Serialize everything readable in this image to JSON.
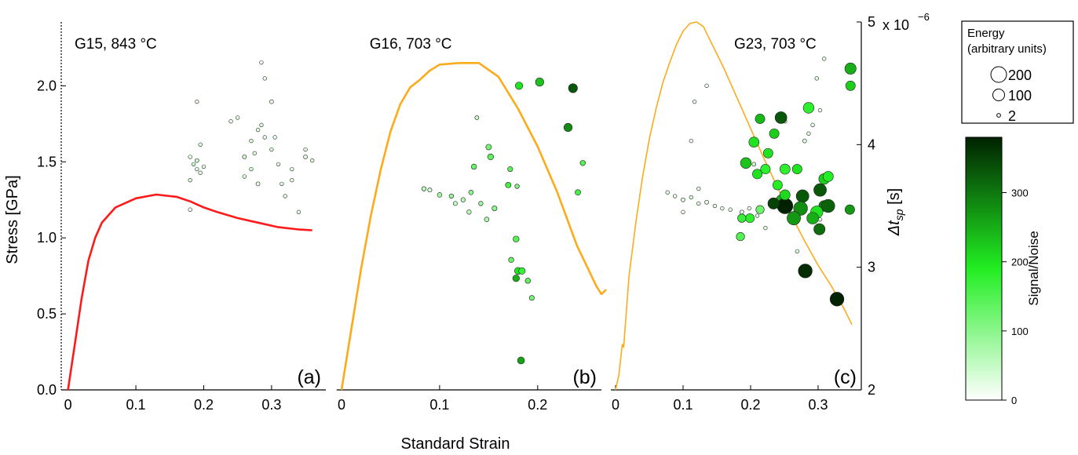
{
  "chart_data": [
    {
      "type": "line",
      "annotation": "G15, 843 °C",
      "label": "(a)",
      "color": "#ff1a1a",
      "xlim": [
        -0.01,
        0.38
      ],
      "xticks": [
        0,
        0.1,
        0.2,
        0.3
      ],
      "ylim": [
        0,
        2.42
      ],
      "yticks": [
        {
          "value": 0,
          "label": "0.0"
        },
        0.5,
        {
          "value": 1,
          "label": "1.0"
        },
        1.5,
        {
          "value": 2,
          "label": "2.0"
        }
      ],
      "y2lim": [
        2e-06,
        5e-06
      ],
      "x": [
        0,
        0.01,
        0.02,
        0.03,
        0.04,
        0.05,
        0.07,
        0.1,
        0.13,
        0.16,
        0.18,
        0.2,
        0.22,
        0.25,
        0.28,
        0.31,
        0.34,
        0.36
      ],
      "values": [
        0,
        0.3,
        0.6,
        0.85,
        1.0,
        1.1,
        1.2,
        1.26,
        1.285,
        1.27,
        1.24,
        1.2,
        1.17,
        1.13,
        1.1,
        1.07,
        1.055,
        1.05
      ],
      "points": {
        "x": [
          0.18,
          0.185,
          0.19,
          0.19,
          0.195,
          0.18,
          0.2,
          0.19,
          0.195,
          0.18,
          0.25,
          0.26,
          0.27,
          0.28,
          0.285,
          0.29,
          0.3,
          0.3,
          0.31,
          0.33,
          0.33,
          0.35,
          0.35,
          0.34,
          0.26,
          0.27,
          0.28,
          0.29,
          0.32,
          0.36,
          0.285,
          0.275,
          0.305,
          0.315,
          0.24
        ],
        "y": [
          3.9e-06,
          3.84e-06,
          3.8e-06,
          3.87e-06,
          3.77e-06,
          3.71e-06,
          3.82e-06,
          4.35e-06,
          4e-06,
          3.47e-06,
          4.22e-06,
          3.9e-06,
          4.03e-06,
          4.12e-06,
          4.67e-06,
          4.54e-06,
          3.96e-06,
          4.35e-06,
          3.84e-06,
          3.8e-06,
          3.71e-06,
          3.9e-06,
          3.96e-06,
          3.45e-06,
          3.74e-06,
          3.8e-06,
          3.68e-06,
          4.06e-06,
          3.58e-06,
          3.87e-06,
          4.16e-06,
          3.93e-06,
          4.06e-06,
          3.68e-06,
          4.19e-06
        ],
        "energy": [
          2,
          2,
          2,
          3,
          2,
          2,
          2,
          2,
          2,
          2,
          2,
          3,
          2,
          2,
          2,
          2,
          2,
          3,
          2,
          2,
          2,
          3,
          2,
          2,
          2,
          2,
          3,
          2,
          2,
          2,
          2,
          2,
          2,
          2,
          2
        ],
        "snr": [
          20,
          40,
          30,
          50,
          25,
          30,
          20,
          15,
          30,
          10,
          20,
          40,
          30,
          25,
          10,
          15,
          35,
          20,
          25,
          30,
          20,
          30,
          25,
          15,
          30,
          40,
          20,
          25,
          20,
          30,
          35,
          25,
          20,
          30,
          15
        ]
      }
    },
    {
      "type": "line",
      "annotation": "G16, 703 °C",
      "label": "(b)",
      "color": "#fbab1b",
      "xlim": [
        -0.005,
        0.265
      ],
      "xticks": [
        0,
        0.1,
        0.2
      ],
      "ylim": [
        0,
        2.42
      ],
      "y2lim": [
        2e-06,
        5e-06
      ],
      "x": [
        0,
        0.01,
        0.02,
        0.03,
        0.04,
        0.05,
        0.06,
        0.07,
        0.08,
        0.09,
        0.1,
        0.12,
        0.14,
        0.16,
        0.18,
        0.2,
        0.22,
        0.24,
        0.26,
        0.265,
        0.27
      ],
      "values": [
        0,
        0.4,
        0.8,
        1.15,
        1.45,
        1.7,
        1.88,
        1.99,
        2.04,
        2.1,
        2.14,
        2.15,
        2.15,
        2.06,
        1.85,
        1.6,
        1.3,
        0.95,
        0.68,
        0.63,
        0.66
      ],
      "points": {
        "x": [
          0.181,
          0.202,
          0.236,
          0.231,
          0.246,
          0.241,
          0.138,
          0.15,
          0.152,
          0.135,
          0.172,
          0.17,
          0.179,
          0.084,
          0.09,
          0.1,
          0.112,
          0.124,
          0.132,
          0.142,
          0.156,
          0.116,
          0.13,
          0.148,
          0.178,
          0.18,
          0.184,
          0.19,
          0.173,
          0.194,
          0.183,
          0.178
        ],
        "y": [
          4.48e-06,
          4.51e-06,
          4.46e-06,
          4.14e-06,
          3.85e-06,
          3.61e-06,
          4.22e-06,
          3.98e-06,
          3.9e-06,
          3.82e-06,
          3.8e-06,
          3.67e-06,
          3.66e-06,
          3.64e-06,
          3.63e-06,
          3.59e-06,
          3.58e-06,
          3.55e-06,
          3.61e-06,
          3.52e-06,
          3.48e-06,
          3.52e-06,
          3.45e-06,
          3.39e-06,
          3.23e-06,
          2.97e-06,
          2.97e-06,
          2.89e-06,
          3.06e-06,
          2.75e-06,
          2.24e-06,
          2.91e-06
        ],
        "energy": [
          30,
          40,
          50,
          40,
          10,
          12,
          3,
          12,
          15,
          10,
          8,
          12,
          5,
          5,
          4,
          6,
          5,
          5,
          6,
          5,
          8,
          4,
          5,
          6,
          15,
          25,
          20,
          10,
          10,
          8,
          25,
          22
        ],
        "snr": [
          200,
          230,
          330,
          280,
          150,
          160,
          50,
          120,
          140,
          130,
          140,
          160,
          110,
          60,
          40,
          80,
          90,
          60,
          100,
          80,
          100,
          50,
          60,
          70,
          150,
          200,
          170,
          140,
          130,
          120,
          260,
          250
        ]
      }
    },
    {
      "type": "line",
      "annotation": "G23, 703 °C",
      "label": "(c)",
      "color": "#fbab1b",
      "xlim": [
        -0.007,
        0.364
      ],
      "xticks": [
        0,
        0.1,
        0.2,
        0.3
      ],
      "ylim": [
        0,
        2.42
      ],
      "y2lim": [
        2e-06,
        5e-06
      ],
      "y2ticks": [
        {
          "value": 2e-06,
          "label": "2"
        },
        {
          "value": 3e-06,
          "label": "3"
        },
        {
          "value": 4e-06,
          "label": "4"
        },
        {
          "value": 5e-06,
          "label": "5"
        }
      ],
      "y2_multiplier": "x 10",
      "y2_exponent": "−6",
      "y2label": {
        "symbol": "Δt",
        "subscript": "sp",
        "unit": " [s]"
      },
      "x": [
        0,
        0.005,
        0.01,
        0.012,
        0.02,
        0.03,
        0.04,
        0.05,
        0.06,
        0.07,
        0.08,
        0.09,
        0.1,
        0.11,
        0.12,
        0.13,
        0.14,
        0.16,
        0.18,
        0.2,
        0.22,
        0.24,
        0.26,
        0.28,
        0.3,
        0.32,
        0.34,
        0.35
      ],
      "values": [
        0,
        0.1,
        0.3,
        0.28,
        0.75,
        1.1,
        1.4,
        1.65,
        1.85,
        2.02,
        2.15,
        2.27,
        2.36,
        2.41,
        2.42,
        2.39,
        2.3,
        2.12,
        1.92,
        1.72,
        1.52,
        1.33,
        1.15,
        0.98,
        0.82,
        0.68,
        0.52,
        0.43
      ],
      "points": {
        "x": [
          0.077,
          0.088,
          0.1,
          0.112,
          0.123,
          0.135,
          0.147,
          0.158,
          0.17,
          0.187,
          0.198,
          0.21,
          0.1,
          0.123,
          0.117,
          0.112,
          0.205,
          0.222,
          0.251,
          0.286,
          0.28,
          0.292,
          0.303,
          0.309,
          0.298,
          0.269,
          0.303,
          0.135,
          0.348,
          0.348,
          0.286,
          0.214,
          0.245,
          0.235,
          0.205,
          0.226,
          0.193,
          0.222,
          0.21,
          0.251,
          0.269,
          0.24,
          0.309,
          0.315,
          0.303,
          0.309,
          0.247,
          0.277,
          0.251,
          0.274,
          0.298,
          0.315,
          0.264,
          0.292,
          0.347,
          0.302,
          0.185,
          0.214,
          0.199,
          0.187,
          0.281,
          0.328,
          0.234,
          0.251
        ],
        "y": [
          3.61e-06,
          3.58e-06,
          3.55e-06,
          3.57e-06,
          3.52e-06,
          3.53e-06,
          3.5e-06,
          3.48e-06,
          3.47e-06,
          3.45e-06,
          3.48e-06,
          3.42e-06,
          3.45e-06,
          3.64e-06,
          4.35e-06,
          4.03e-06,
          3.84e-06,
          3.32e-06,
          4.19e-06,
          4.09e-06,
          4.03e-06,
          4.16e-06,
          4.28e-06,
          4.7e-06,
          4.54e-06,
          3.13e-06,
          3.39e-06,
          4.48e-06,
          4.62e-06,
          4.48e-06,
          4.3e-06,
          4.21e-06,
          4.22e-06,
          4.09e-06,
          4.02e-06,
          3.93e-06,
          3.85e-06,
          3.8e-06,
          3.76e-06,
          3.8e-06,
          3.8e-06,
          3.67e-06,
          3.72e-06,
          3.74e-06,
          3.63e-06,
          3.5e-06,
          3.54e-06,
          3.58e-06,
          3.5e-06,
          3.48e-06,
          3.45e-06,
          3.5e-06,
          3.4e-06,
          3.4e-06,
          3.47e-06,
          3.31e-06,
          3.25e-06,
          3.47e-06,
          3.4e-06,
          3.4e-06,
          2.97e-06,
          2.74e-06,
          3.52e-06,
          3.59e-06
        ],
        "energy": [
          2,
          2,
          3,
          2,
          2,
          3,
          2,
          2,
          2,
          3,
          2,
          2,
          2,
          2,
          2,
          2,
          3,
          2,
          2,
          2,
          3,
          2,
          2,
          2,
          2,
          2,
          2,
          2,
          90,
          60,
          80,
          60,
          100,
          60,
          70,
          60,
          80,
          60,
          60,
          70,
          60,
          60,
          80,
          70,
          120,
          80,
          130,
          120,
          200,
          150,
          110,
          130,
          140,
          100,
          60,
          90,
          40,
          40,
          50,
          40,
          150,
          150,
          90,
          70
        ],
        "snr": [
          20,
          15,
          25,
          30,
          20,
          15,
          25,
          20,
          30,
          25,
          20,
          30,
          15,
          20,
          10,
          15,
          40,
          30,
          20,
          25,
          30,
          20,
          15,
          20,
          25,
          30,
          20,
          10,
          250,
          220,
          180,
          240,
          330,
          220,
          200,
          200,
          230,
          180,
          200,
          180,
          200,
          190,
          220,
          190,
          330,
          300,
          250,
          330,
          380,
          280,
          200,
          320,
          270,
          250,
          270,
          310,
          150,
          130,
          180,
          170,
          370,
          380,
          350,
          210
        ]
      }
    }
  ],
  "figure": {
    "xlabel": "Standard Strain",
    "ylabel": "Stress [GPa]",
    "size_legend": {
      "title": [
        "Energy",
        "(arbitrary units)"
      ],
      "values": [
        200,
        100,
        2
      ]
    },
    "colorbar": {
      "label": "Signal/Noise",
      "lim": [
        0,
        380
      ],
      "ticks": [
        0,
        100,
        200,
        300
      ],
      "colormap": [
        "#ffffff",
        "#22ee22",
        "#002200"
      ]
    }
  }
}
